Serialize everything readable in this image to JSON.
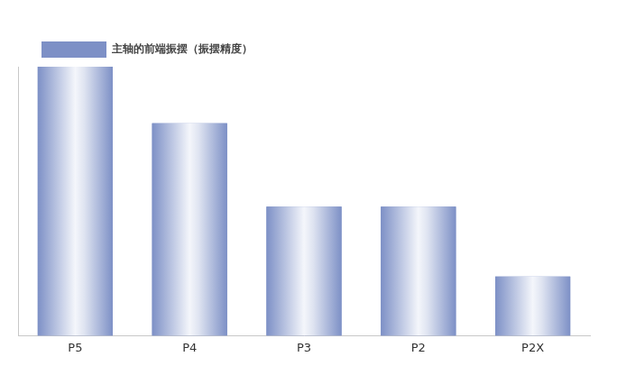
{
  "chart_data": {
    "type": "bar",
    "categories": [
      "P5",
      "P4",
      "P3",
      "P2",
      "P2X"
    ],
    "series": [
      {
        "name": "主轴的前端振摆（振摆精度）",
        "color": "#7d90c6",
        "values": [
          100,
          79,
          48,
          48,
          22
        ]
      }
    ],
    "ylim": [
      0,
      100
    ],
    "grid": false,
    "legend": "top-left",
    "tick_labels": "x"
  }
}
